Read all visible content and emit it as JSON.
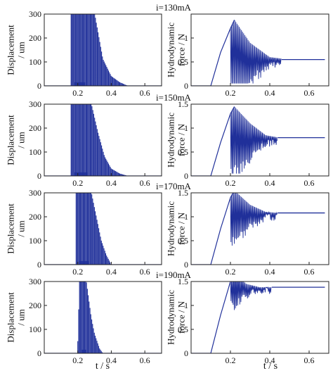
{
  "colors": {
    "signal": "#20309a",
    "axis": "#222222",
    "background": "#ffffff"
  },
  "xlabel": "t / s",
  "ylabel_left": [
    "Displacement",
    "/ um"
  ],
  "ylabel_right": [
    "Hydrodynamic",
    "force / N"
  ],
  "chart_data": [
    {
      "type": "line",
      "panel": "displacement",
      "current": "i=130mA",
      "xlim": [
        0,
        0.7
      ],
      "ylim": [
        0,
        300
      ],
      "xticks": [
        0.2,
        0.4,
        0.6
      ],
      "yticks": [
        0,
        100,
        200,
        300
      ],
      "series": [
        {
          "x": [
            0.16,
            0.18,
            0.2,
            0.25,
            0.3,
            0.35,
            0.4,
            0.45,
            0.5
          ],
          "y": [
            300,
            300,
            300,
            300,
            300,
            110,
            40,
            15,
            0
          ]
        }
      ]
    },
    {
      "type": "line",
      "panel": "force",
      "current": "i=130mA",
      "xlim": [
        0,
        0.7
      ],
      "ylim": [
        0,
        1.5
      ],
      "xticks": [
        0.2,
        0.4,
        0.6
      ],
      "yticks": [
        0,
        0.5,
        1
      ],
      "series": [
        {
          "x": [
            0.1,
            0.15,
            0.2,
            0.22,
            0.3,
            0.4,
            0.5,
            0.6,
            0.68
          ],
          "y": [
            0,
            0.7,
            1.2,
            1.38,
            0.9,
            0.6,
            0.55,
            0.55,
            0.55
          ]
        }
      ]
    },
    {
      "type": "line",
      "panel": "displacement",
      "current": "i=150mA",
      "xlim": [
        0,
        0.7
      ],
      "ylim": [
        0,
        300
      ],
      "xticks": [
        0.2,
        0.4,
        0.6
      ],
      "yticks": [
        0,
        100,
        200,
        300
      ],
      "series": [
        {
          "x": [
            0.16,
            0.18,
            0.22,
            0.28,
            0.32,
            0.36,
            0.4,
            0.45,
            0.5
          ],
          "y": [
            300,
            300,
            300,
            300,
            180,
            80,
            30,
            10,
            0
          ]
        }
      ]
    },
    {
      "type": "line",
      "panel": "force",
      "current": "i=150mA",
      "xlim": [
        0,
        0.7
      ],
      "ylim": [
        0,
        1.5
      ],
      "xticks": [
        0.2,
        0.4,
        0.6
      ],
      "yticks": [
        0,
        0.5,
        1,
        1.5
      ],
      "series": [
        {
          "x": [
            0.1,
            0.15,
            0.2,
            0.22,
            0.3,
            0.38,
            0.45,
            0.6,
            0.68
          ],
          "y": [
            0,
            0.7,
            1.3,
            1.45,
            1.1,
            0.85,
            0.8,
            0.8,
            0.8
          ]
        }
      ]
    },
    {
      "type": "line",
      "panel": "displacement",
      "current": "i=170mA",
      "xlim": [
        0,
        0.7
      ],
      "ylim": [
        0,
        300
      ],
      "xticks": [
        0.2,
        0.4,
        0.6
      ],
      "yticks": [
        0,
        100,
        200,
        300
      ],
      "series": [
        {
          "x": [
            0.19,
            0.2,
            0.24,
            0.28,
            0.31,
            0.34,
            0.37,
            0.4
          ],
          "y": [
            300,
            300,
            300,
            300,
            200,
            100,
            40,
            0
          ]
        }
      ]
    },
    {
      "type": "line",
      "panel": "force",
      "current": "i=170mA",
      "xlim": [
        0,
        0.7
      ],
      "ylim": [
        0,
        1.5
      ],
      "xticks": [
        0.2,
        0.4,
        0.6
      ],
      "yticks": [
        0,
        0.5,
        1,
        1.5
      ],
      "series": [
        {
          "x": [
            0.1,
            0.15,
            0.2,
            0.22,
            0.3,
            0.38,
            0.45,
            0.6,
            0.68
          ],
          "y": [
            0,
            0.75,
            1.4,
            1.55,
            1.25,
            1.1,
            1.08,
            1.08,
            1.08
          ]
        }
      ]
    },
    {
      "type": "line",
      "panel": "displacement",
      "current": "i=190mA",
      "xlim": [
        0,
        0.7
      ],
      "ylim": [
        0,
        300
      ],
      "xticks": [
        0.2,
        0.4,
        0.6
      ],
      "yticks": [
        0,
        100,
        200,
        300
      ],
      "series": [
        {
          "x": [
            0.2,
            0.21,
            0.23,
            0.25,
            0.28,
            0.3,
            0.33,
            0.35
          ],
          "y": [
            50,
            300,
            300,
            300,
            150,
            80,
            20,
            0
          ]
        }
      ]
    },
    {
      "type": "line",
      "panel": "force",
      "current": "i=190mA",
      "xlim": [
        0,
        0.7
      ],
      "ylim": [
        0,
        1.5
      ],
      "xticks": [
        0.2,
        0.4,
        0.6
      ],
      "yticks": [
        0,
        0.5,
        1,
        1.5
      ],
      "series": [
        {
          "x": [
            0.1,
            0.15,
            0.2,
            0.22,
            0.28,
            0.35,
            0.4,
            0.6,
            0.68
          ],
          "y": [
            0,
            0.8,
            1.5,
            1.7,
            1.45,
            1.38,
            1.38,
            1.38,
            1.38
          ]
        }
      ]
    }
  ]
}
